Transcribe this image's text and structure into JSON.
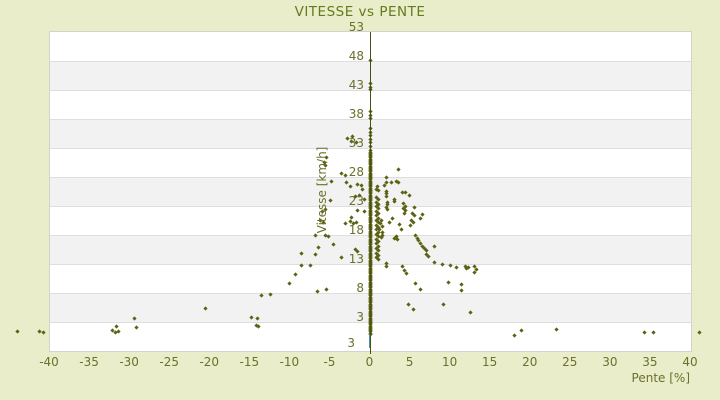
{
  "colors": {
    "background": "#e9edca",
    "band_light": "#ffffff",
    "band_dark": "#f2f2f2",
    "gridline": "#dedede",
    "marker": "#5c6214",
    "axis_olive": "#474f14",
    "axis_blue": "#4e8fae",
    "text": "#6b702b",
    "title_text": "#647a1e"
  },
  "chart_data": {
    "type": "scatter",
    "title": "VITESSE vs PENTE",
    "xlabel": "Pente [%]",
    "ylabel": "Vitesse [km/h]",
    "legend": false,
    "grid": "horizontal-bands-alternating",
    "xlim": [
      -40,
      40
    ],
    "ylim": [
      -2,
      53
    ],
    "x_ticks": [
      -40,
      -35,
      -30,
      -25,
      -20,
      -15,
      -10,
      -5,
      0,
      5,
      10,
      15,
      20,
      25,
      30,
      35,
      40
    ],
    "y_ticks": [
      53,
      48,
      43,
      38,
      33,
      28,
      23,
      18,
      13,
      8,
      3
    ],
    "y_axis_bottom_label": "3",
    "marker": "diamond",
    "points": [
      [
        -44.0,
        1.2
      ],
      [
        -41.2,
        1.2
      ],
      [
        -40.8,
        1.1
      ],
      [
        -32.1,
        1.4
      ],
      [
        -31.8,
        1.1
      ],
      [
        -31.4,
        1.3
      ],
      [
        -31.6,
        2.2
      ],
      [
        -29.4,
        3.5
      ],
      [
        -29.2,
        2.0
      ],
      [
        -20.5,
        5.2
      ],
      [
        -14.8,
        3.7
      ],
      [
        -14.1,
        3.6
      ],
      [
        -14.2,
        2.3
      ],
      [
        -13.9,
        2.1
      ],
      [
        -13.5,
        7.5
      ],
      [
        -12.4,
        7.7
      ],
      [
        -10.1,
        9.5
      ],
      [
        -9.3,
        11.1
      ],
      [
        -8.5,
        14.7
      ],
      [
        -8.5,
        12.7
      ],
      [
        -7.4,
        12.7
      ],
      [
        -6.8,
        14.6
      ],
      [
        -6.5,
        8.2
      ],
      [
        -5.4,
        8.5
      ],
      [
        -6.4,
        15.8
      ],
      [
        -4.6,
        16.3
      ],
      [
        -3.5,
        14.0
      ],
      [
        -1.8,
        15.4
      ],
      [
        -1.5,
        15.0
      ],
      [
        -6.8,
        17.8
      ],
      [
        -5.5,
        17.9
      ],
      [
        -5.2,
        17.7
      ],
      [
        -6.2,
        20.4
      ],
      [
        -5.8,
        20.1
      ],
      [
        -5.9,
        21.9
      ],
      [
        -5.5,
        22.3
      ],
      [
        -4.9,
        23.8
      ],
      [
        -3.0,
        19.9
      ],
      [
        -2.4,
        20.2
      ],
      [
        -2.1,
        19.9
      ],
      [
        -2.3,
        21.0
      ],
      [
        -1.7,
        20.1
      ],
      [
        -1.5,
        22.2
      ],
      [
        -0.7,
        21.9
      ],
      [
        -1.3,
        24.7
      ],
      [
        -1.8,
        24.5
      ],
      [
        -0.7,
        24.0
      ],
      [
        -0.9,
        25.7
      ],
      [
        -2.9,
        26.9
      ],
      [
        -2.4,
        26.2
      ],
      [
        -1.6,
        26.6
      ],
      [
        -1.0,
        26.4
      ],
      [
        -4.8,
        27.2
      ],
      [
        -3.5,
        28.5
      ],
      [
        -3.1,
        28.1
      ],
      [
        -5.4,
        31.3
      ],
      [
        -5.7,
        30.5
      ],
      [
        -5.6,
        29.9
      ],
      [
        -2.8,
        34.6
      ],
      [
        -2.2,
        34.9
      ],
      [
        -2.3,
        34.0
      ],
      [
        -1.7,
        33.8
      ],
      [
        3.6,
        29.2
      ],
      [
        2.1,
        27.9
      ],
      [
        2.0,
        26.9
      ],
      [
        1.8,
        26.5
      ],
      [
        2.7,
        27.0
      ],
      [
        3.3,
        27.2
      ],
      [
        3.5,
        27.0
      ],
      [
        0.9,
        26.2
      ],
      [
        0.8,
        25.7
      ],
      [
        1.1,
        25.6
      ],
      [
        2.0,
        25.5
      ],
      [
        2.1,
        25.0
      ],
      [
        2.0,
        24.6
      ],
      [
        4.0,
        25.3
      ],
      [
        4.4,
        25.2
      ],
      [
        4.9,
        24.7
      ],
      [
        0.8,
        24.4
      ],
      [
        1.0,
        24.0
      ],
      [
        0.8,
        23.6
      ],
      [
        1.0,
        23.2
      ],
      [
        0.8,
        22.8
      ],
      [
        1.0,
        22.4
      ],
      [
        0.8,
        22.0
      ],
      [
        1.0,
        21.6
      ],
      [
        0.8,
        21.2
      ],
      [
        1.0,
        20.8
      ],
      [
        0.8,
        20.4
      ],
      [
        1.0,
        20.0
      ],
      [
        0.8,
        19.6
      ],
      [
        1.0,
        19.2
      ],
      [
        0.8,
        18.8
      ],
      [
        1.0,
        18.4
      ],
      [
        0.8,
        18.0
      ],
      [
        1.0,
        17.6
      ],
      [
        0.8,
        17.2
      ],
      [
        1.0,
        16.8
      ],
      [
        0.8,
        16.4
      ],
      [
        1.0,
        16.0
      ],
      [
        0.8,
        15.6
      ],
      [
        1.0,
        15.2
      ],
      [
        0.8,
        14.8
      ],
      [
        1.0,
        14.4
      ],
      [
        0.8,
        14.0
      ],
      [
        1.0,
        13.7
      ],
      [
        3.0,
        24.0
      ],
      [
        3.1,
        23.7
      ],
      [
        2.2,
        23.6
      ],
      [
        2.2,
        23.2
      ],
      [
        2.1,
        22.7
      ],
      [
        2.2,
        22.3
      ],
      [
        4.2,
        23.3
      ],
      [
        4.4,
        22.9
      ],
      [
        4.2,
        22.5
      ],
      [
        4.4,
        22.1
      ],
      [
        4.3,
        21.6
      ],
      [
        5.5,
        22.7
      ],
      [
        5.3,
        21.7
      ],
      [
        5.5,
        21.3
      ],
      [
        6.5,
        21.5
      ],
      [
        2.8,
        20.7
      ],
      [
        2.4,
        20.1
      ],
      [
        3.7,
        19.8
      ],
      [
        5.2,
        20.4
      ],
      [
        5.4,
        20.0
      ],
      [
        5.1,
        19.6
      ],
      [
        6.3,
        20.7
      ],
      [
        1.4,
        20.4
      ],
      [
        1.3,
        19.9
      ],
      [
        1.5,
        19.4
      ],
      [
        1.2,
        18.9
      ],
      [
        1.5,
        18.4
      ],
      [
        3.9,
        18.8
      ],
      [
        1.6,
        17.8
      ],
      [
        1.4,
        17.4
      ],
      [
        3.3,
        17.7
      ],
      [
        3.0,
        17.3
      ],
      [
        3.4,
        17.1
      ],
      [
        5.7,
        17.8
      ],
      [
        5.9,
        17.3
      ],
      [
        6.0,
        16.9
      ],
      [
        6.3,
        16.4
      ],
      [
        6.6,
        15.9
      ],
      [
        6.8,
        15.6
      ],
      [
        7.0,
        15.2
      ],
      [
        8.0,
        15.9
      ],
      [
        7.1,
        14.6
      ],
      [
        7.3,
        14.2
      ],
      [
        2.0,
        13.0
      ],
      [
        2.1,
        12.5
      ],
      [
        4.1,
        12.5
      ],
      [
        4.3,
        11.8
      ],
      [
        4.5,
        11.3
      ],
      [
        8.0,
        13.1
      ],
      [
        9.1,
        12.9
      ],
      [
        10.0,
        12.7
      ],
      [
        10.8,
        12.3
      ],
      [
        11.9,
        12.5
      ],
      [
        12.1,
        12.1
      ],
      [
        12.3,
        12.3
      ],
      [
        13.0,
        12.4
      ],
      [
        13.3,
        11.9
      ],
      [
        13.0,
        11.5
      ],
      [
        5.7,
        9.5
      ],
      [
        6.3,
        8.5
      ],
      [
        9.8,
        9.7
      ],
      [
        11.4,
        9.3
      ],
      [
        11.4,
        8.3
      ],
      [
        4.8,
        5.9
      ],
      [
        5.4,
        5.1
      ],
      [
        9.2,
        5.9
      ],
      [
        12.6,
        4.5
      ],
      [
        18.0,
        0.6
      ],
      [
        18.9,
        1.5
      ],
      [
        23.3,
        1.6
      ],
      [
        34.3,
        1.1
      ],
      [
        35.4,
        1.1
      ],
      [
        41.1,
        1.1
      ]
    ],
    "zero_slope_column": {
      "p": 0,
      "v_dense_min": 0.8,
      "v_dense_max": 32.4,
      "v_dense_step": 0.2,
      "extra_v": [
        33.2,
        33.8,
        34.4,
        35.0,
        35.6,
        36.2,
        38.0,
        38.6,
        39.2,
        43.0,
        43.4,
        44.0,
        48.0
      ]
    }
  }
}
